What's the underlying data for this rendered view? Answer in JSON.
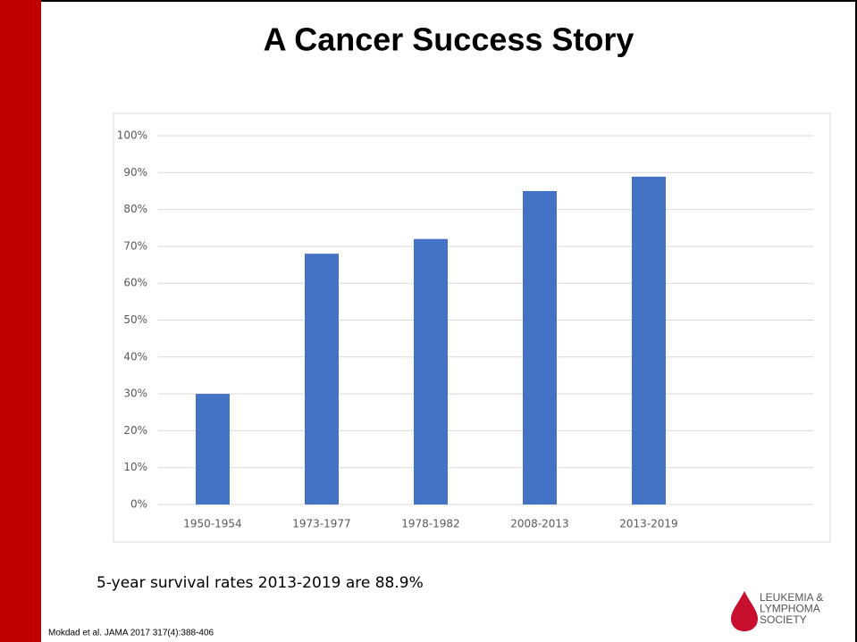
{
  "chart_data": {
    "type": "bar",
    "title": "A Cancer Success Story",
    "categories": [
      "1950-1954",
      "1973-1977",
      "1978-1982",
      "2008-2013",
      "2013-2019"
    ],
    "values": [
      30,
      68,
      72,
      85,
      88.9
    ],
    "color": "#4472c4",
    "ylim": [
      0,
      100
    ],
    "yticks": [
      {
        "value": 0,
        "label": "0%"
      },
      {
        "value": 10,
        "label": "10%"
      },
      {
        "value": 20,
        "label": "20%"
      },
      {
        "value": 30,
        "label": "30%"
      },
      {
        "value": 40,
        "label": "40%"
      },
      {
        "value": 50,
        "label": "50%"
      },
      {
        "value": 60,
        "label": "60%"
      },
      {
        "value": 70,
        "label": "70%"
      },
      {
        "value": 80,
        "label": "80%"
      },
      {
        "value": 90,
        "label": "90%"
      },
      {
        "value": 100,
        "label": "100%"
      }
    ],
    "grid": true,
    "caption": "5-year survival rates 2013-2019 are 88.9%",
    "source": "Mokdad et al. JAMA 2017 317(4):388-406",
    "logo": [
      "LEUKEMIA &",
      "LYMPHOMA",
      "SOCIETY"
    ]
  }
}
